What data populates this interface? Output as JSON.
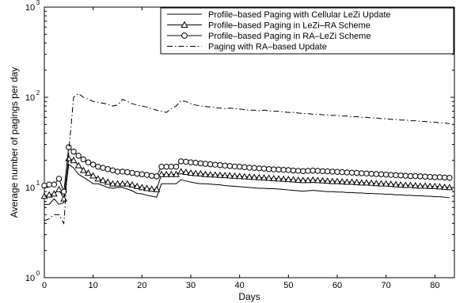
{
  "chart_data": {
    "type": "line",
    "title": "",
    "xlabel": "Days",
    "ylabel": "Average number of pagings per day",
    "xlim": [
      0,
      84
    ],
    "ylim": [
      1,
      1000
    ],
    "yscale": "log",
    "grid": false,
    "legend_position": "top-right",
    "x_ticks": [
      0,
      10,
      20,
      30,
      40,
      50,
      60,
      70,
      80
    ],
    "y_ticks": [
      {
        "value": 1,
        "base": "10",
        "exp": "0"
      },
      {
        "value": 10,
        "base": "10",
        "exp": "1"
      },
      {
        "value": 100,
        "base": "10",
        "exp": "2"
      },
      {
        "value": 1000,
        "base": "10",
        "exp": "3"
      }
    ],
    "x": [
      0,
      1,
      2,
      3,
      4,
      5,
      6,
      7,
      8,
      9,
      10,
      11,
      12,
      13,
      14,
      15,
      16,
      17,
      18,
      19,
      20,
      21,
      22,
      23,
      24,
      25,
      26,
      27,
      28,
      29,
      30,
      31,
      32,
      33,
      34,
      35,
      36,
      37,
      38,
      39,
      40,
      41,
      42,
      43,
      44,
      45,
      46,
      47,
      48,
      49,
      50,
      51,
      52,
      53,
      54,
      55,
      56,
      57,
      58,
      59,
      60,
      61,
      62,
      63,
      64,
      65,
      66,
      67,
      68,
      69,
      70,
      71,
      72,
      73,
      74,
      75,
      76,
      77,
      78,
      79,
      80,
      81,
      82,
      83
    ],
    "series": [
      {
        "name": "Profile–based Paging with Cellular LeZi Update",
        "style": "solid",
        "marker": "none",
        "values": [
          6.5,
          6.5,
          7.5,
          6.5,
          6.8,
          18,
          16.5,
          14,
          13,
          12,
          11,
          11,
          10.5,
          10,
          9.8,
          10,
          10,
          9.6,
          9.2,
          8.6,
          8.5,
          8.2,
          8,
          7.8,
          11,
          11,
          11,
          11,
          12.2,
          11.8,
          11.5,
          11.2,
          11,
          11,
          10.9,
          10.8,
          10.7,
          10.5,
          10.4,
          10.3,
          10.2,
          10.1,
          10,
          9.9,
          9.8,
          9.8,
          9.7,
          9.7,
          9.6,
          9.5,
          9.4,
          9.3,
          9.2,
          9.1,
          9.2,
          9.3,
          9.2,
          9.1,
          9,
          9,
          8.9,
          8.9,
          8.8,
          8.8,
          8.7,
          8.7,
          8.6,
          8.6,
          8.5,
          8.5,
          8.4,
          8.4,
          8.3,
          8.3,
          8.2,
          8.2,
          8.1,
          8.1,
          8,
          8,
          7.9,
          7.9,
          7.8,
          7.7
        ]
      },
      {
        "name": "Profile–based Paging in LeZi–RA Scheme",
        "style": "solid",
        "marker": "triangle",
        "values": [
          8,
          8.3,
          8.5,
          9.5,
          7.5,
          21,
          20,
          17.5,
          15.5,
          14.5,
          13.5,
          12.5,
          12,
          11.5,
          11,
          11,
          11,
          11,
          10.7,
          10.3,
          10,
          9.8,
          9.6,
          9.5,
          14,
          14,
          14,
          14,
          15,
          14.8,
          14.5,
          14.3,
          14.2,
          14,
          13.9,
          13.8,
          13.7,
          13.6,
          13.5,
          13.4,
          13.3,
          13.2,
          13.1,
          13,
          12.9,
          12.8,
          12.7,
          12.6,
          12.5,
          12.4,
          12.3,
          12.2,
          12.1,
          12,
          12,
          12.1,
          12,
          11.9,
          11.8,
          11.7,
          11.7,
          11.6,
          11.5,
          11.5,
          11.4,
          11.3,
          11.3,
          11.2,
          11.1,
          11,
          11,
          10.9,
          10.8,
          10.7,
          10.6,
          10.6,
          10.5,
          10.4,
          10.4,
          10.3,
          10.3,
          10.2,
          10.1,
          10
        ]
      },
      {
        "name": "Profile–based Paging in RA–LeZi Scheme",
        "style": "solid",
        "marker": "circle",
        "values": [
          10.5,
          10.8,
          10.8,
          12.5,
          9,
          28,
          25,
          22.5,
          20.5,
          19,
          18,
          17,
          16.5,
          16,
          15.5,
          15,
          15,
          14.8,
          14.5,
          14.2,
          14,
          13.8,
          13.5,
          13.3,
          17,
          17,
          17,
          17,
          19.5,
          19.3,
          19,
          18.8,
          18.5,
          18.3,
          18.1,
          17.9,
          17.7,
          17.5,
          17.3,
          17.1,
          17,
          16.8,
          16.6,
          16.5,
          16.3,
          16.2,
          16,
          15.9,
          15.8,
          15.7,
          15.6,
          15.4,
          15.3,
          15.2,
          15.3,
          15.4,
          15.3,
          15.2,
          15.1,
          15,
          14.9,
          14.8,
          14.7,
          14.6,
          14.5,
          14.4,
          14.3,
          14.2,
          14.1,
          14,
          13.9,
          13.8,
          13.7,
          13.6,
          13.5,
          13.4,
          13.4,
          13.3,
          13.2,
          13.1,
          13,
          13,
          12.9,
          12.8
        ]
      },
      {
        "name": "Paging with RA–based Update",
        "style": "dashdot",
        "marker": "none",
        "values": [
          4.3,
          4.5,
          5,
          5,
          4,
          25,
          100,
          110,
          100,
          95,
          90,
          88,
          86,
          84,
          80,
          82,
          95,
          90,
          85,
          82,
          80,
          78,
          75,
          72,
          70,
          68,
          75,
          80,
          92,
          90,
          85,
          82,
          80,
          79,
          78,
          77,
          76,
          75,
          76,
          75,
          74,
          73,
          72,
          72,
          71,
          72,
          71,
          70,
          70,
          69,
          68,
          68,
          67,
          66,
          66,
          65,
          65,
          64,
          64,
          63,
          63,
          62,
          62,
          61,
          61,
          60,
          60,
          59,
          59,
          58,
          58,
          57,
          57,
          56,
          56,
          55,
          55,
          54,
          54,
          53,
          53,
          52,
          52,
          51
        ]
      }
    ]
  }
}
